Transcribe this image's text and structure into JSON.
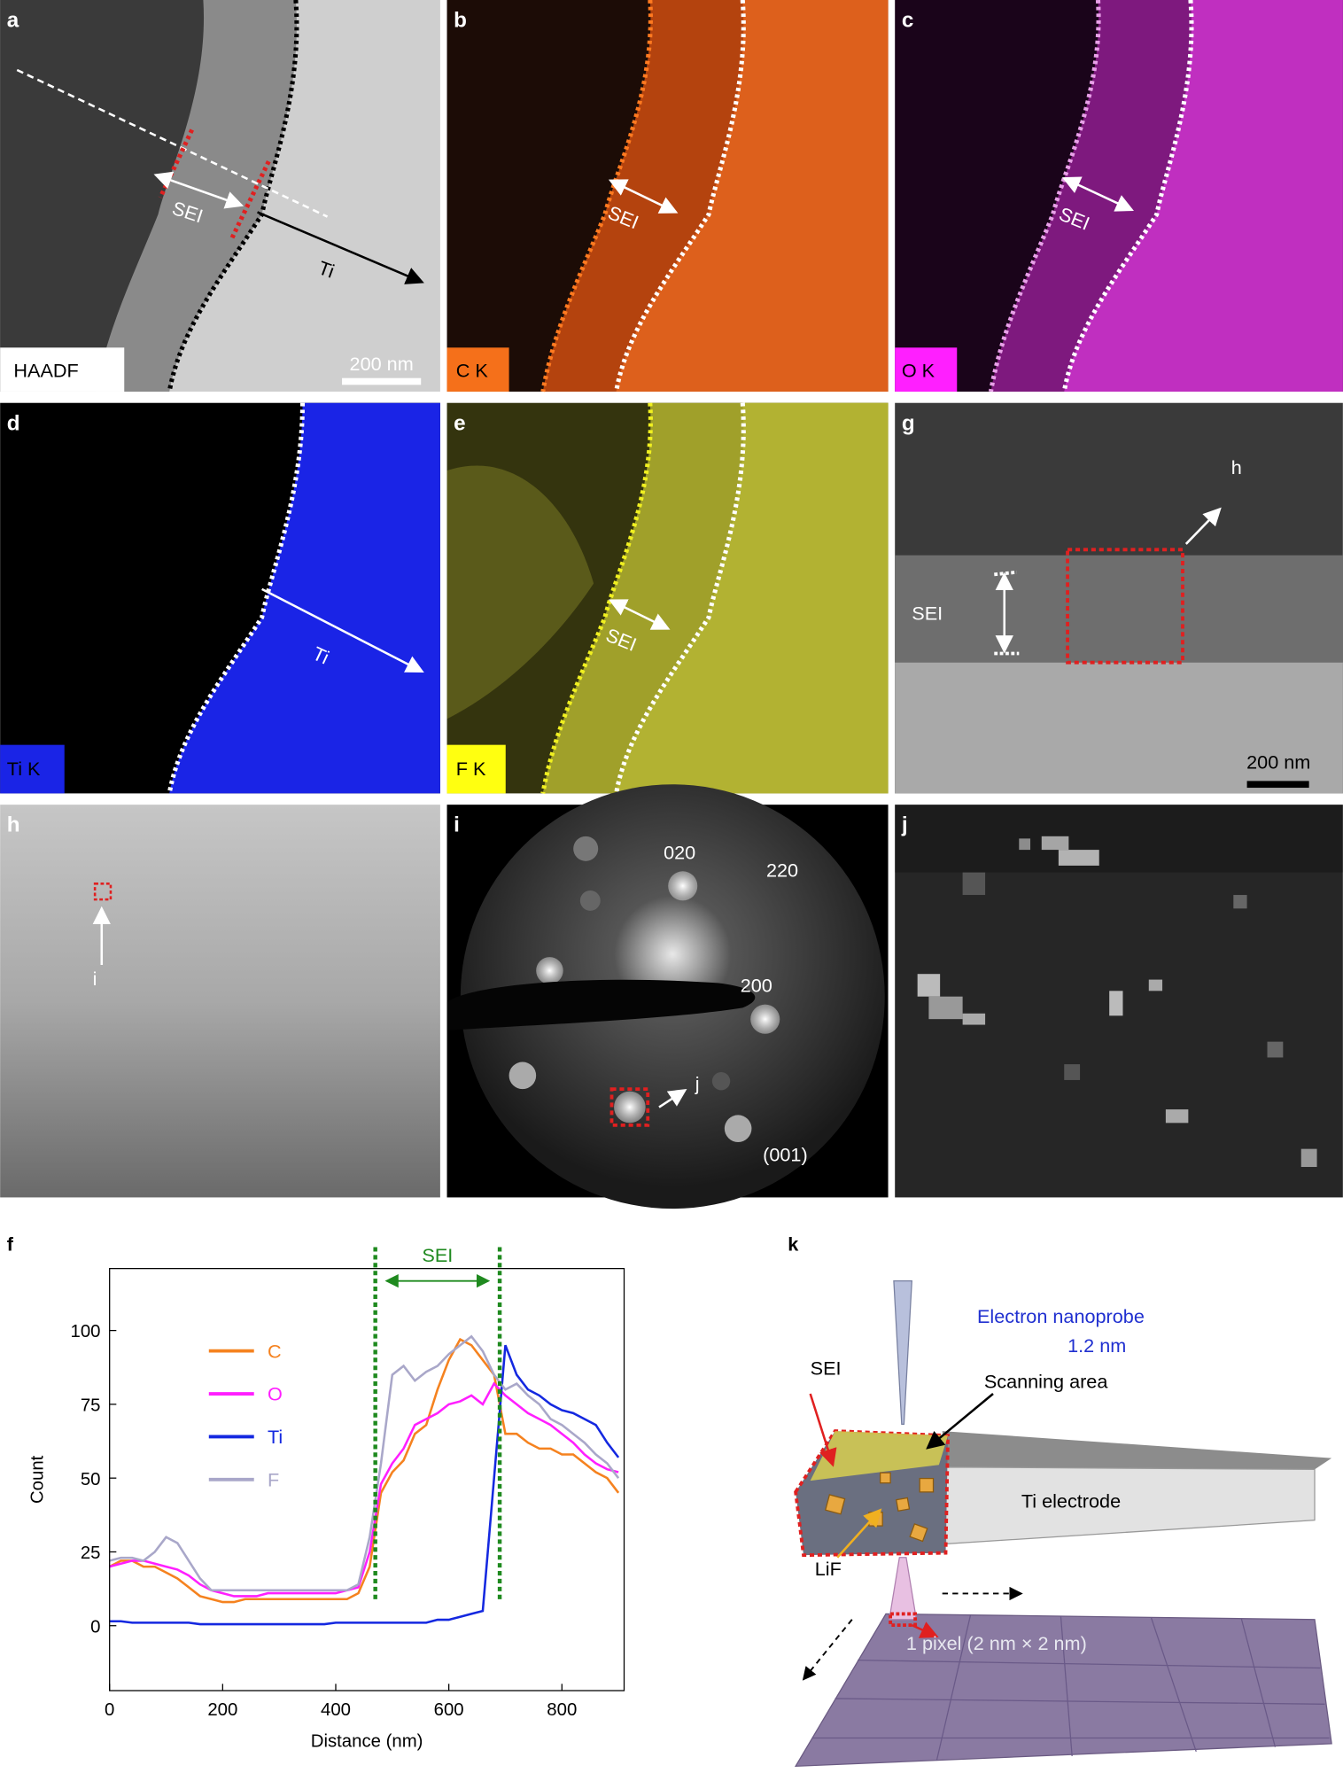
{
  "panels": [
    {
      "letter": "a",
      "label": "HAADF",
      "scale_bar": "200 nm",
      "annotations": [
        "SEI",
        "Ti"
      ]
    },
    {
      "letter": "b",
      "label": "C K",
      "annotations": [
        "SEI"
      ]
    },
    {
      "letter": "c",
      "label": "O K",
      "annotations": [
        "SEI"
      ]
    },
    {
      "letter": "d",
      "label": "Ti K",
      "annotations": [
        "Ti"
      ]
    },
    {
      "letter": "e",
      "label": "F K",
      "annotations": [
        "SEI"
      ]
    },
    {
      "letter": "g",
      "scale_bar": "200 nm",
      "annotations": [
        "SEI",
        "h"
      ]
    },
    {
      "letter": "h",
      "annotations": [
        "i"
      ]
    },
    {
      "letter": "i",
      "annotations": [
        "020",
        "220",
        "200",
        "j",
        "(001)"
      ]
    },
    {
      "letter": "j"
    }
  ],
  "chart_data": {
    "type": "line",
    "panel_letter": "f",
    "xlabel": "Distance (nm)",
    "ylabel": "Count",
    "x": [
      0,
      20,
      40,
      60,
      80,
      100,
      120,
      140,
      160,
      180,
      200,
      220,
      240,
      260,
      280,
      300,
      320,
      340,
      360,
      380,
      400,
      420,
      440,
      460,
      480,
      500,
      520,
      540,
      560,
      580,
      600,
      620,
      640,
      660,
      680,
      700,
      720,
      740,
      760,
      780,
      800,
      820,
      840,
      860,
      880,
      900
    ],
    "series": [
      {
        "name": "C",
        "color": "#f5821f",
        "values": [
          20,
          22,
          22,
          20,
          20,
          18,
          16,
          13,
          10,
          9,
          8,
          8,
          9,
          9,
          9,
          9,
          9,
          9,
          9,
          9,
          9,
          9,
          11,
          20,
          45,
          52,
          56,
          65,
          68,
          80,
          90,
          97,
          95,
          90,
          85,
          65,
          65,
          62,
          60,
          60,
          58,
          58,
          55,
          52,
          50,
          45
        ]
      },
      {
        "name": "O",
        "color": "#ff1fff",
        "values": [
          20,
          21,
          22,
          22,
          21,
          20,
          19,
          17,
          14,
          12,
          11,
          10,
          10,
          10,
          11,
          11,
          11,
          11,
          11,
          11,
          11,
          12,
          13,
          25,
          48,
          55,
          60,
          68,
          70,
          72,
          75,
          76,
          78,
          75,
          82,
          78,
          75,
          72,
          70,
          68,
          65,
          62,
          58,
          55,
          53,
          52
        ]
      },
      {
        "name": "Ti",
        "color": "#1428e0",
        "values": [
          1.5,
          1.5,
          1,
          1,
          1,
          1,
          1,
          1,
          0.5,
          0.5,
          0.5,
          0.5,
          0.5,
          0.5,
          0.5,
          0.5,
          0.5,
          0.5,
          0.5,
          0.5,
          1,
          1,
          1,
          1,
          1,
          1,
          1,
          1,
          1,
          2,
          2,
          3,
          4,
          5,
          50,
          95,
          85,
          80,
          78,
          75,
          73,
          72,
          70,
          68,
          62,
          57
        ]
      },
      {
        "name": "F",
        "color": "#a9a7c9",
        "values": [
          22,
          23,
          23,
          22,
          25,
          30,
          28,
          22,
          16,
          12,
          12,
          12,
          12,
          12,
          12,
          12,
          12,
          12,
          12,
          12,
          12,
          12,
          14,
          30,
          55,
          85,
          88,
          83,
          86,
          88,
          92,
          95,
          98,
          93,
          85,
          80,
          82,
          78,
          75,
          70,
          68,
          65,
          62,
          58,
          55,
          50
        ]
      }
    ],
    "xlim": [
      0,
      910
    ],
    "ylim": [
      -22,
      121
    ],
    "xticks": [
      0,
      200,
      400,
      600,
      800
    ],
    "yticks": [
      0,
      25,
      50,
      75,
      100
    ],
    "sei_region": {
      "label": "SEI",
      "x": [
        470,
        690
      ],
      "color": "#1f8a1f"
    }
  },
  "diagram_k": {
    "letter": "k",
    "probe_label": "Electron nanoprobe",
    "probe_size": "1.2 nm",
    "sei": "SEI",
    "scanning_area": "Scanning area",
    "electrode": "Ti electrode",
    "lif": "LiF",
    "pixel": "1 pixel (2 nm × 2 nm)"
  }
}
